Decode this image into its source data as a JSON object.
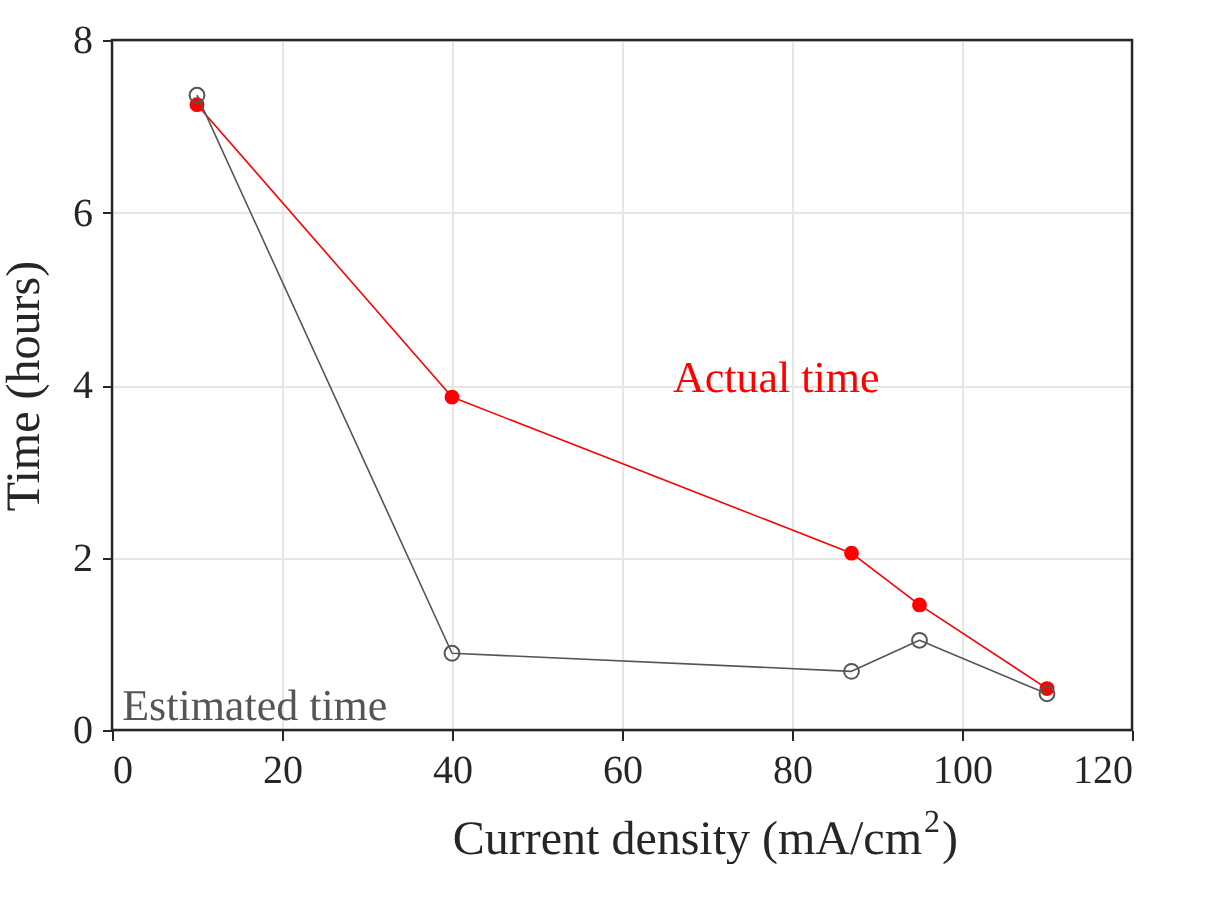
{
  "chart_data": {
    "type": "line",
    "xlabel": "Current density (mA/cm$^{2}$)",
    "ylabel": "Time (hours)",
    "xlim": [
      0,
      120
    ],
    "xticks": [
      0,
      20,
      40,
      60,
      80,
      100,
      120
    ],
    "ylim": [
      0,
      8
    ],
    "yticks": [
      0,
      2,
      4,
      6,
      8
    ],
    "grid": true,
    "legend": false,
    "series": [
      {
        "name": "Actual time",
        "color": "#ff0000",
        "marker": "circle",
        "x": [
          10,
          40,
          87,
          95,
          110
        ],
        "values": [
          7.25,
          3.86,
          2.05,
          1.45,
          0.48
        ]
      },
      {
        "name": "Estimated time",
        "color": "#555555",
        "marker": "circle",
        "x": [
          10,
          40,
          87,
          95,
          110
        ],
        "values": [
          7.36,
          0.89,
          0.68,
          1.04,
          0.42
        ]
      }
    ]
  }
}
